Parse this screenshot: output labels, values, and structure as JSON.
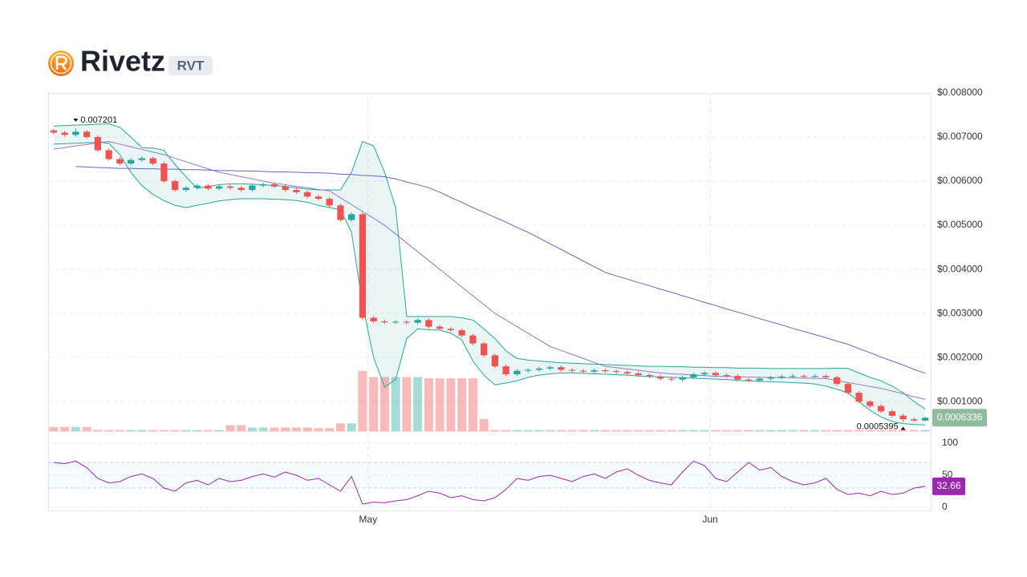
{
  "chart_data": {
    "type": "candlestick",
    "title": "Rivetz",
    "ticker": "RVT",
    "xlim": [
      0,
      80
    ],
    "xticks": [
      {
        "value": 29,
        "label": "May"
      },
      {
        "value": 60,
        "label": "Jun"
      }
    ],
    "ylim": [
      0.00033,
      0.008
    ],
    "yticks": [
      {
        "value": 0.001,
        "label": "$0.001000"
      },
      {
        "value": 0.002,
        "label": "$0.002000"
      },
      {
        "value": 0.003,
        "label": "$0.003000"
      },
      {
        "value": 0.004,
        "label": "$0.004000"
      },
      {
        "value": 0.005,
        "label": "$0.005000"
      },
      {
        "value": 0.006,
        "label": "$0.006000"
      },
      {
        "value": 0.007,
        "label": "$0.007000"
      },
      {
        "value": 0.008,
        "label": "$0.008000"
      }
    ],
    "grid": true,
    "up_color": "#26a69a",
    "down_color": "#ef5350",
    "last_price_color": "#8fbc9c",
    "candles": {
      "open": [
        0.00715,
        0.0071,
        0.00705,
        0.00712,
        0.007,
        0.0067,
        0.0065,
        0.0064,
        0.00648,
        0.00652,
        0.0064,
        0.006,
        0.0058,
        0.00585,
        0.0059,
        0.00583,
        0.00588,
        0.00585,
        0.0058,
        0.0059,
        0.00593,
        0.00588,
        0.0058,
        0.00575,
        0.00565,
        0.0056,
        0.00545,
        0.00512,
        0.00525,
        0.0029,
        0.00282,
        0.0028,
        0.00281,
        0.00279,
        0.00285,
        0.0027,
        0.00265,
        0.00262,
        0.0025,
        0.00232,
        0.00205,
        0.0018,
        0.00162,
        0.0017,
        0.00172,
        0.00175,
        0.00178,
        0.00172,
        0.0017,
        0.00168,
        0.00171,
        0.00169,
        0.00167,
        0.00164,
        0.0016,
        0.00157,
        0.00152,
        0.0015,
        0.00155,
        0.00162,
        0.00165,
        0.0016,
        0.00158,
        0.0015,
        0.00148,
        0.00152,
        0.00155,
        0.00157,
        0.00158,
        0.00156,
        0.00158,
        0.00155,
        0.0014,
        0.0012,
        0.001,
        0.0009,
        0.00078,
        0.00068,
        0.0006,
        0.00057
      ],
      "high": [
        0.00719,
        0.00714,
        0.007201,
        0.00716,
        0.00704,
        0.00674,
        0.00654,
        0.00652,
        0.00656,
        0.00656,
        0.00644,
        0.00604,
        0.00589,
        0.00594,
        0.00594,
        0.00592,
        0.00592,
        0.00589,
        0.00594,
        0.00597,
        0.00597,
        0.00592,
        0.00584,
        0.00579,
        0.00569,
        0.00564,
        0.00549,
        0.00529,
        0.00529,
        0.00294,
        0.00286,
        0.00285,
        0.00285,
        0.00289,
        0.00289,
        0.00274,
        0.00269,
        0.00266,
        0.00254,
        0.00236,
        0.00209,
        0.00184,
        0.00174,
        0.00176,
        0.00179,
        0.00182,
        0.00182,
        0.00176,
        0.00174,
        0.00175,
        0.00175,
        0.00173,
        0.00171,
        0.00168,
        0.00164,
        0.00161,
        0.00156,
        0.00159,
        0.00166,
        0.00169,
        0.00169,
        0.00164,
        0.00162,
        0.00154,
        0.00156,
        0.00159,
        0.00161,
        0.00162,
        0.00162,
        0.00162,
        0.00162,
        0.00159,
        0.00144,
        0.00124,
        0.00104,
        0.00094,
        0.00082,
        0.00072,
        0.00064,
        0.00066
      ],
      "low": [
        0.00706,
        0.00701,
        0.00701,
        0.00696,
        0.00666,
        0.00646,
        0.00636,
        0.00636,
        0.00644,
        0.00636,
        0.00596,
        0.00576,
        0.00576,
        0.00581,
        0.00579,
        0.00579,
        0.00581,
        0.00576,
        0.00576,
        0.00586,
        0.00584,
        0.00576,
        0.00571,
        0.00561,
        0.00556,
        0.00541,
        0.00508,
        0.00508,
        0.00285,
        0.00278,
        0.00276,
        0.00276,
        0.00275,
        0.00275,
        0.00266,
        0.00261,
        0.00258,
        0.00246,
        0.00228,
        0.00201,
        0.00176,
        0.00158,
        0.00158,
        0.00166,
        0.00168,
        0.00171,
        0.00168,
        0.00166,
        0.00164,
        0.00164,
        0.00165,
        0.00163,
        0.0016,
        0.00156,
        0.00153,
        0.00148,
        0.00146,
        0.00146,
        0.00151,
        0.00158,
        0.00156,
        0.00154,
        0.00146,
        0.00144,
        0.00144,
        0.00148,
        0.00151,
        0.00153,
        0.00152,
        0.00152,
        0.00151,
        0.00136,
        0.00116,
        0.00096,
        0.00086,
        0.00074,
        0.00064,
        0.0005395,
        0.00055,
        0.00055
      ],
      "close": [
        0.0071,
        0.00705,
        0.00712,
        0.007,
        0.0067,
        0.0065,
        0.0064,
        0.00648,
        0.00652,
        0.0064,
        0.006,
        0.0058,
        0.00585,
        0.0059,
        0.00583,
        0.00588,
        0.00585,
        0.0058,
        0.0059,
        0.00593,
        0.00588,
        0.0058,
        0.00575,
        0.00565,
        0.0056,
        0.00545,
        0.00512,
        0.00525,
        0.0029,
        0.00282,
        0.0028,
        0.00281,
        0.00279,
        0.00285,
        0.0027,
        0.00265,
        0.00262,
        0.0025,
        0.00232,
        0.00205,
        0.0018,
        0.00162,
        0.0017,
        0.00172,
        0.00175,
        0.00178,
        0.00172,
        0.0017,
        0.00168,
        0.00171,
        0.00169,
        0.00167,
        0.00164,
        0.0016,
        0.00157,
        0.00152,
        0.0015,
        0.00155,
        0.00162,
        0.00165,
        0.0016,
        0.00158,
        0.0015,
        0.00148,
        0.00152,
        0.00155,
        0.00157,
        0.00158,
        0.00156,
        0.00158,
        0.00155,
        0.0014,
        0.0012,
        0.001,
        0.0009,
        0.00078,
        0.00068,
        0.0006,
        0.00057,
        0.0006336
      ]
    },
    "volume": {
      "lim": [
        0,
        100
      ],
      "values": [
        7,
        7,
        7,
        7,
        2,
        2,
        2,
        2,
        2,
        2,
        2,
        2,
        2,
        2,
        2,
        2,
        10,
        10,
        6,
        6,
        6,
        6,
        6,
        6,
        5,
        5,
        13,
        13,
        100,
        90,
        90,
        90,
        90,
        90,
        88,
        88,
        88,
        88,
        88,
        20,
        2,
        2,
        2,
        2,
        2,
        2,
        2,
        2,
        2,
        2,
        2,
        2,
        2,
        2,
        2,
        2,
        2,
        2,
        2,
        2,
        2,
        2,
        2,
        2,
        2,
        2,
        2,
        2,
        2,
        2,
        2,
        2,
        2,
        2,
        2,
        2,
        2,
        2,
        2,
        2
      ]
    },
    "bollinger": {
      "color": "#26a69a",
      "upper": [
        0.00725,
        0.00726,
        0.00727,
        0.00728,
        0.00729,
        0.0073,
        0.00722,
        0.007,
        0.00676,
        0.00675,
        0.0067,
        0.00638,
        0.0061,
        0.00584,
        0.00588,
        0.00592,
        0.00594,
        0.00594,
        0.00593,
        0.00592,
        0.0059,
        0.00588,
        0.00585,
        0.00582,
        0.0058,
        0.0058,
        0.0058,
        0.0062,
        0.0069,
        0.0068,
        0.0062,
        0.0054,
        0.00293,
        0.00293,
        0.00293,
        0.00293,
        0.00293,
        0.0029,
        0.00285,
        0.00265,
        0.00243,
        0.00215,
        0.00198,
        0.00194,
        0.00192,
        0.0019,
        0.00188,
        0.00187,
        0.00186,
        0.00185,
        0.00184,
        0.00183,
        0.00182,
        0.00181,
        0.0018,
        0.0018,
        0.00179,
        0.00179,
        0.00178,
        0.00178,
        0.00177,
        0.00177,
        0.00176,
        0.00176,
        0.00176,
        0.00175,
        0.00175,
        0.00175,
        0.00175,
        0.00175,
        0.00175,
        0.00176,
        0.00175,
        0.00165,
        0.00155,
        0.00147,
        0.00135,
        0.0012,
        0.001,
        0.00083
      ],
      "lower": [
        0.00684,
        0.00685,
        0.00686,
        0.00687,
        0.00688,
        0.00686,
        0.0066,
        0.0062,
        0.0059,
        0.0057,
        0.00556,
        0.00545,
        0.0054,
        0.00545,
        0.0055,
        0.00555,
        0.00558,
        0.0056,
        0.0056,
        0.0056,
        0.00559,
        0.00558,
        0.00556,
        0.00552,
        0.00545,
        0.0054,
        0.00535,
        0.00484,
        0.0032,
        0.002,
        0.00133,
        0.0015,
        0.00243,
        0.00265,
        0.00263,
        0.00262,
        0.00255,
        0.0024,
        0.00192,
        0.0016,
        0.00138,
        0.00142,
        0.00147,
        0.00155,
        0.0016,
        0.00163,
        0.00165,
        0.00165,
        0.00164,
        0.00163,
        0.00162,
        0.00161,
        0.0016,
        0.00158,
        0.00157,
        0.00156,
        0.00155,
        0.00154,
        0.00153,
        0.00152,
        0.00151,
        0.0015,
        0.00148,
        0.00147,
        0.00146,
        0.00145,
        0.00144,
        0.00143,
        0.00142,
        0.0014,
        0.00135,
        0.00128,
        0.0012,
        0.001,
        0.0008,
        0.00065,
        0.00055,
        0.0005,
        0.00048,
        0.00047
      ]
    },
    "moving_averages": [
      {
        "color": "#9575cd",
        "values": [
          0.00673,
          0.00676,
          0.0068,
          0.00683,
          0.00687,
          0.0069,
          0.00684,
          0.00678,
          0.00672,
          0.00666,
          0.0066,
          0.00652,
          0.00644,
          0.00636,
          0.00628,
          0.0062,
          0.00615,
          0.0061,
          0.00605,
          0.006,
          0.00595,
          0.00592,
          0.00588,
          0.00585,
          0.00581,
          0.00578,
          0.00562,
          0.00547,
          0.00531,
          0.00516,
          0.005,
          0.0048,
          0.0046,
          0.0044,
          0.0042,
          0.004,
          0.0038,
          0.0036,
          0.0034,
          0.0032,
          0.003,
          0.00285,
          0.0027,
          0.00255,
          0.0024,
          0.00225,
          0.00216,
          0.00207,
          0.00198,
          0.00189,
          0.0018,
          0.00177,
          0.00174,
          0.00171,
          0.00168,
          0.00165,
          0.00163,
          0.00162,
          0.0016,
          0.00159,
          0.00157,
          0.00157,
          0.00156,
          0.00156,
          0.00155,
          0.00155,
          0.00154,
          0.00154,
          0.00153,
          0.00153,
          0.00152,
          0.00148,
          0.00143,
          0.00139,
          0.00134,
          0.0013,
          0.00124,
          0.00118,
          0.00111,
          0.00105
        ]
      },
      {
        "color": "#5c6bc0",
        "values": [
          null,
          null,
          0.00633,
          0.00632,
          0.00631,
          0.0063,
          0.00629,
          0.00629,
          0.00628,
          0.00628,
          0.00627,
          0.00627,
          0.00626,
          0.00626,
          0.00625,
          0.00624,
          0.00624,
          0.00623,
          0.00623,
          0.00622,
          0.00621,
          0.00621,
          0.0062,
          0.00619,
          0.00619,
          0.00618,
          0.00616,
          0.00615,
          0.00613,
          0.00612,
          0.0061,
          0.00605,
          0.00598,
          0.00592,
          0.00585,
          0.00575,
          0.00563,
          0.00552,
          0.0054,
          0.00529,
          0.00518,
          0.00507,
          0.00495,
          0.00484,
          0.00471,
          0.00458,
          0.00445,
          0.00432,
          0.00419,
          0.00406,
          0.00393,
          0.00385,
          0.00378,
          0.0037,
          0.00363,
          0.00355,
          0.00348,
          0.0034,
          0.00333,
          0.00325,
          0.00318,
          0.0031,
          0.00303,
          0.00296,
          0.00288,
          0.00281,
          0.00274,
          0.00266,
          0.00259,
          0.00252,
          0.00245,
          0.00237,
          0.0023,
          0.0022,
          0.00211,
          0.00201,
          0.00192,
          0.00183,
          0.00173,
          0.00164
        ]
      }
    ],
    "rsi": {
      "color": "#9c27b0",
      "ylim": [
        0,
        100
      ],
      "yticks": [
        0,
        50,
        100
      ],
      "levels": [
        30,
        70
      ],
      "values": [
        70,
        68,
        72,
        62,
        45,
        38,
        40,
        48,
        52,
        45,
        30,
        25,
        38,
        42,
        35,
        45,
        40,
        42,
        48,
        52,
        47,
        55,
        50,
        42,
        45,
        35,
        25,
        48,
        5,
        8,
        7,
        10,
        12,
        18,
        25,
        22,
        15,
        18,
        12,
        10,
        15,
        28,
        45,
        42,
        48,
        50,
        45,
        40,
        48,
        52,
        45,
        55,
        60,
        50,
        42,
        38,
        35,
        55,
        72,
        65,
        45,
        40,
        55,
        70,
        58,
        62,
        48,
        40,
        35,
        38,
        45,
        28,
        20,
        22,
        18,
        25,
        20,
        22,
        30,
        32.66
      ]
    }
  }
}
